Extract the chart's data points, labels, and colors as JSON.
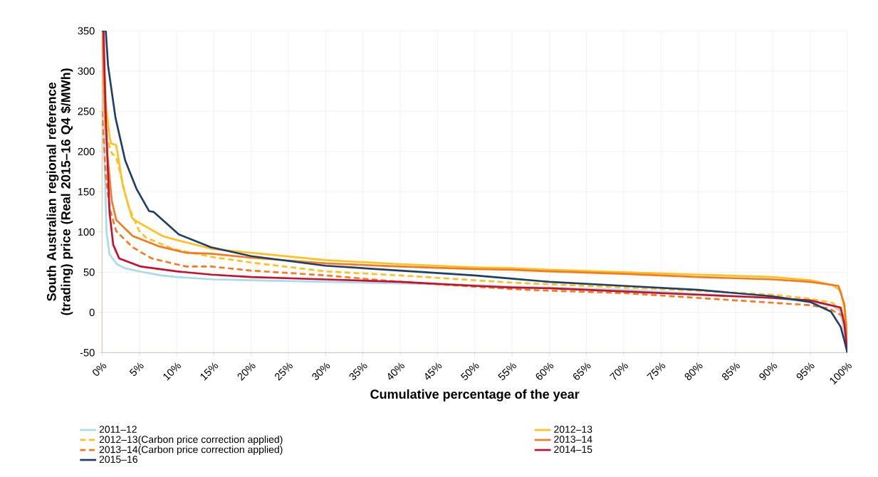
{
  "chart_data": {
    "type": "line",
    "xlabel": "Cumulative percentage of the year",
    "ylabel": "South Australian regional reference (trading) price (Real 2015–16 Q4 $/MWh)",
    "xlim": [
      0,
      100
    ],
    "ylim": [
      -50,
      350
    ],
    "xticks": [
      {
        "value": 0,
        "label": "0%"
      },
      {
        "value": 5,
        "label": "5%"
      },
      {
        "value": 10,
        "label": "10%"
      },
      {
        "value": 15,
        "label": "15%"
      },
      {
        "value": 20,
        "label": "20%"
      },
      {
        "value": 25,
        "label": "25%"
      },
      {
        "value": 30,
        "label": "30%"
      },
      {
        "value": 35,
        "label": "35%"
      },
      {
        "value": 40,
        "label": "40%"
      },
      {
        "value": 45,
        "label": "45%"
      },
      {
        "value": 50,
        "label": "50%"
      },
      {
        "value": 55,
        "label": "55%"
      },
      {
        "value": 60,
        "label": "60%"
      },
      {
        "value": 65,
        "label": "65%"
      },
      {
        "value": 70,
        "label": "70%"
      },
      {
        "value": 75,
        "label": "75%"
      },
      {
        "value": 80,
        "label": "80%"
      },
      {
        "value": 85,
        "label": "85%"
      },
      {
        "value": 90,
        "label": "90%"
      },
      {
        "value": 95,
        "label": "95%"
      },
      {
        "value": 100,
        "label": "100%"
      }
    ],
    "yticks": [
      -50,
      0,
      50,
      100,
      150,
      200,
      250,
      300,
      350
    ],
    "grid": true,
    "legend": "bottom",
    "marker": "none",
    "series": [
      {
        "name": "2011–12",
        "color": "#a6dcec",
        "line_style": "solid",
        "x": [
          0,
          0.3,
          0.6,
          1,
          2,
          3,
          5,
          8,
          10,
          15,
          20,
          30,
          40,
          50,
          55,
          60,
          70,
          80,
          90,
          95,
          98,
          99,
          99.5,
          100
        ],
        "values": [
          350,
          200,
          100,
          72,
          60,
          55,
          51,
          46,
          44,
          41,
          40,
          38,
          36,
          34,
          32,
          null,
          28,
          23,
          18,
          13,
          8,
          2,
          -20,
          -50
        ]
      },
      {
        "name": "2012–13",
        "color": "#ffc020",
        "line_style": "solid",
        "x": [
          0,
          0.5,
          1,
          1.2,
          1.9,
          2.8,
          4,
          4.3,
          8.1,
          10,
          14.7,
          20,
          30,
          40,
          50,
          55,
          60,
          70,
          80,
          90,
          95,
          98,
          99.1,
          99.7,
          100
        ],
        "values": [
          350,
          260,
          219,
          210,
          208,
          157,
          118,
          115,
          95,
          90,
          79,
          74,
          65,
          60,
          56,
          55,
          53,
          50,
          47,
          44,
          40,
          34,
          27,
          0,
          -30
        ]
      },
      {
        "name": "2012–13(Carbon price correction applied)",
        "color": "#ffc020",
        "line_style": "dashed",
        "x": [
          0,
          0.5,
          1.3,
          1.9,
          3.5,
          5,
          5.9,
          9.5,
          14.7,
          20,
          30,
          40,
          50,
          55,
          60,
          70,
          80,
          90,
          95,
          98,
          99.5,
          100
        ],
        "values": [
          300,
          220,
          198,
          193,
          133,
          101,
          93,
          79,
          69,
          62,
          51,
          46,
          40,
          37,
          35,
          31,
          27,
          22,
          17,
          12,
          0,
          -20
        ]
      },
      {
        "name": "2013–14",
        "color": "#f47a20",
        "line_style": "solid",
        "x": [
          0,
          0.4,
          0.7,
          1.3,
          1.9,
          4.1,
          7.7,
          11.3,
          14.7,
          20,
          30,
          40,
          50,
          55,
          60,
          70,
          80,
          90,
          95,
          98.8,
          99.6,
          100
        ],
        "values": [
          350,
          250,
          198,
          139,
          115,
          95,
          82,
          74,
          73,
          68,
          61,
          57,
          54,
          53,
          51,
          48,
          44,
          41,
          38,
          33,
          10,
          -40
        ]
      },
      {
        "name": "2013–14(Carbon price correction applied)",
        "color": "#f47a20",
        "line_style": "dashed",
        "x": [
          0,
          0.5,
          1,
          1.9,
          4.1,
          6.7,
          11.3,
          14.7,
          20,
          30,
          40,
          50,
          55,
          60,
          70,
          80,
          90,
          95,
          97.5,
          99.5,
          100
        ],
        "values": [
          250,
          170,
          130,
          101,
          81,
          67,
          57,
          57,
          52,
          46,
          38,
          32,
          29,
          27,
          24,
          18,
          12,
          9,
          5,
          -5,
          -20
        ]
      },
      {
        "name": "2014–15",
        "color": "#c8102e",
        "line_style": "solid",
        "x": [
          0,
          0.2,
          0.5,
          1,
          1.5,
          2.3,
          5.2,
          10,
          14.7,
          20,
          30,
          40,
          50,
          55,
          60,
          70,
          80,
          90,
          95,
          99.1,
          99.6,
          100
        ],
        "values": [
          350,
          350,
          242,
          124,
          84,
          67,
          57,
          51,
          47,
          44,
          41,
          38,
          33,
          31,
          30,
          26,
          22,
          18,
          15,
          6,
          -15,
          -50
        ]
      },
      {
        "name": "2015–16",
        "color": "#1f3f66",
        "line_style": "solid",
        "x": [
          0,
          0.5,
          0.8,
          1.8,
          3.1,
          4.6,
          6.3,
          6.9,
          10.3,
          14.6,
          20,
          25,
          30,
          40,
          50,
          55,
          60,
          70,
          80,
          90,
          95,
          97.8,
          99.1,
          99.6,
          100
        ],
        "values": [
          350,
          350,
          307,
          242,
          189,
          154,
          126,
          125,
          97,
          81,
          70,
          64,
          58,
          52,
          46,
          42,
          38,
          33,
          28,
          20,
          13,
          1,
          -18,
          -35,
          -50
        ]
      }
    ]
  }
}
